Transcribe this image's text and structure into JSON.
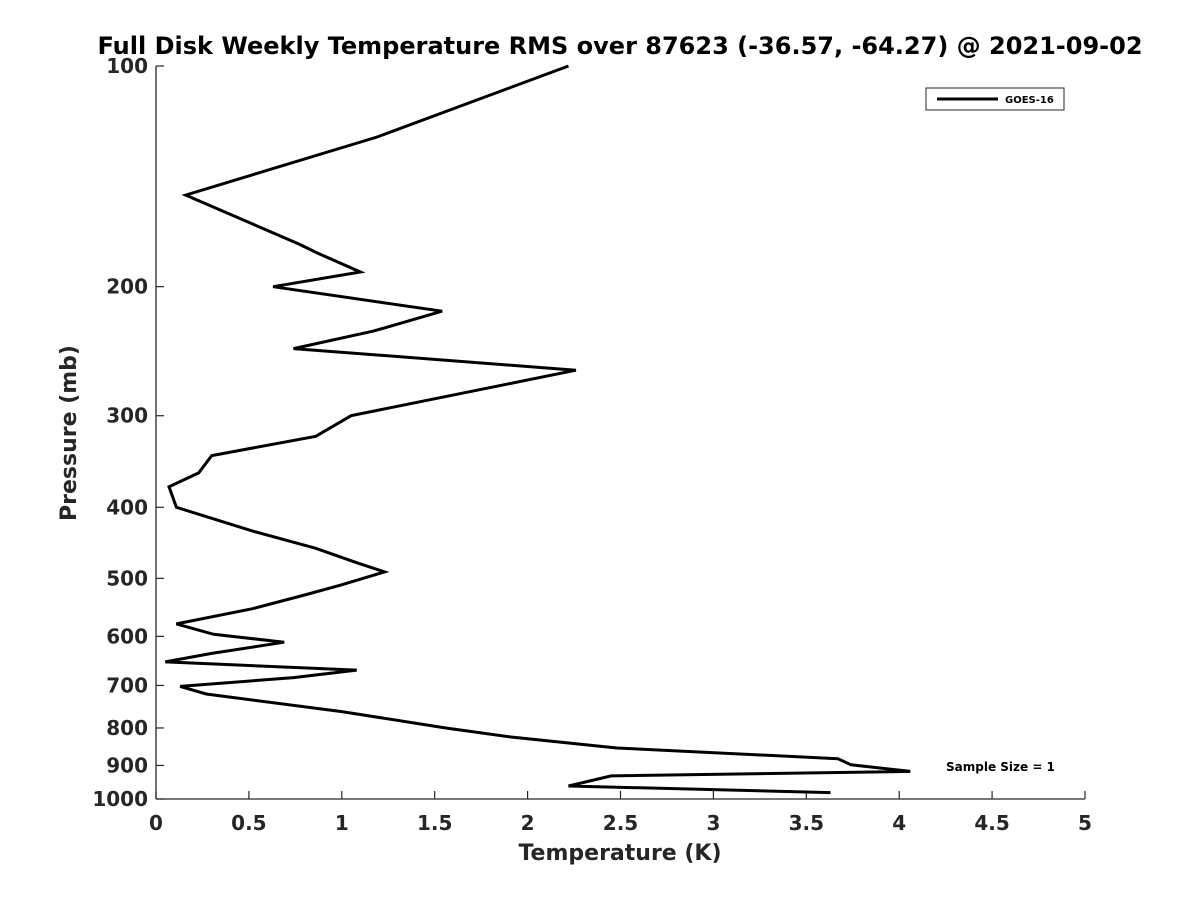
{
  "chart_data": {
    "type": "line",
    "title": "Full Disk Weekly Temperature RMS over 87623 (-36.57, -64.27) @ 2021-09-02",
    "xlabel": "Temperature (K)",
    "ylabel": "Pressure (mb)",
    "xlim": [
      0,
      5
    ],
    "ylim": [
      100,
      1000
    ],
    "y_scale": "log",
    "y_reversed": true,
    "x_ticks": [
      "0",
      "0.5",
      "1",
      "1.5",
      "2",
      "2.5",
      "3",
      "3.5",
      "4",
      "4.5",
      "5"
    ],
    "y_ticks": [
      "100",
      "200",
      "300",
      "400",
      "500",
      "600",
      "700",
      "800",
      "900",
      "1000"
    ],
    "grid": false,
    "legend_position": "top-right",
    "annotation": "Sample Size = 1",
    "series": [
      {
        "name": "GOES-16",
        "color": "#000000",
        "points": [
          [
            2.22,
            100
          ],
          [
            1.19,
            125
          ],
          [
            0.16,
            150
          ],
          [
            0.77,
            175
          ],
          [
            0.87,
            180
          ],
          [
            1.1,
            191
          ],
          [
            0.63,
            200
          ],
          [
            1.54,
            216
          ],
          [
            1.17,
            230
          ],
          [
            0.74,
            243
          ],
          [
            2.26,
            260
          ],
          [
            1.05,
            300
          ],
          [
            0.86,
            320
          ],
          [
            0.3,
            340
          ],
          [
            0.23,
            359
          ],
          [
            0.07,
            375
          ],
          [
            0.11,
            400
          ],
          [
            0.52,
            431
          ],
          [
            0.86,
            455
          ],
          [
            1.08,
            476
          ],
          [
            1.23,
            490
          ],
          [
            0.99,
            511
          ],
          [
            0.81,
            526
          ],
          [
            0.52,
            550
          ],
          [
            0.11,
            577
          ],
          [
            0.31,
            596
          ],
          [
            0.69,
            611
          ],
          [
            0.3,
            633
          ],
          [
            0.05,
            650
          ],
          [
            1.08,
            667
          ],
          [
            0.74,
            683
          ],
          [
            0.13,
            702
          ],
          [
            0.27,
            719
          ],
          [
            1.0,
            760
          ],
          [
            1.56,
            800
          ],
          [
            1.91,
            823
          ],
          [
            2.48,
            852
          ],
          [
            3.67,
            881
          ],
          [
            3.74,
            898
          ],
          [
            4.06,
            917
          ],
          [
            2.45,
            930
          ],
          [
            2.22,
            960
          ],
          [
            3.63,
            980
          ]
        ]
      }
    ]
  }
}
